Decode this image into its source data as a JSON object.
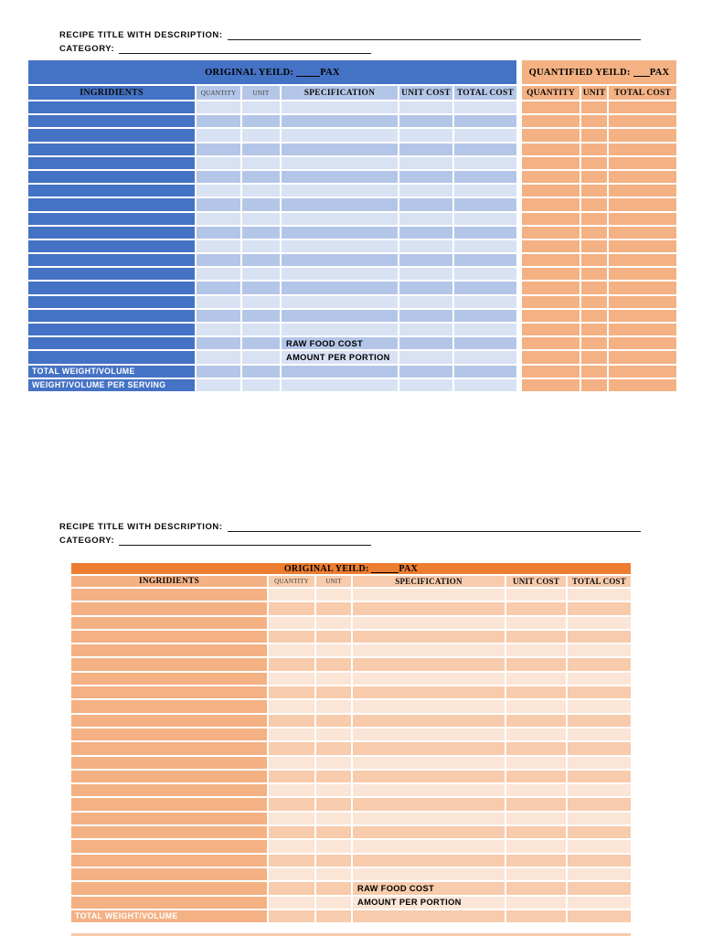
{
  "colors": {
    "blue": "#4472C4",
    "blue_row_light": "#D9E2F3",
    "blue_row_dark": "#B4C6E7",
    "orange": "#ED7D31",
    "orange_medium": "#F4B183",
    "orange_row_light": "#FBE5D6",
    "orange_row_dark": "#F7CBAC"
  },
  "sections": {
    "top": {
      "recipe_title_label": "RECIPE TITLE WITH DESCRIPTION:",
      "category_label": "CATEGORY:",
      "table": {
        "original_yield_label": "ORIGINAL YEILD:",
        "pax_label": "PAX",
        "quantified_yield_label": "QUANTIFIED YEILD:",
        "columns": [
          "INGRIDIENTS",
          "QUANTITY",
          "UNIT",
          "SPECIFICATION",
          "UNIT COST",
          "TOTAL COST"
        ],
        "quantified_columns": [
          "QUANTITY",
          "UNIT",
          "TOTAL COST"
        ],
        "empty_row_count": 17,
        "spec_labels": [
          "RAW FOOD COST",
          "AMOUNT PER PORTION"
        ],
        "footer_labels": [
          "TOTAL WEIGHT/VOLUME",
          "WEIGHT/VOLUME PER SERVING"
        ]
      }
    },
    "bottom": {
      "recipe_title_label": "RECIPE TITLE WITH DESCRIPTION:",
      "category_label": "CATEGORY:",
      "table": {
        "original_yield_label": "ORIGINAL YEILD:",
        "pax_label": "PAX",
        "columns": [
          "INGRIDIENTS",
          "QUANTITY",
          "UNIT",
          "SPECIFICATION",
          "UNIT COST",
          "TOTAL COST"
        ],
        "empty_row_count": 21,
        "spec_labels": [
          "RAW FOOD COST",
          "AMOUNT PER PORTION"
        ],
        "footer_labels": [
          "TOTAL WEIGHT/VOLUME"
        ]
      }
    }
  }
}
